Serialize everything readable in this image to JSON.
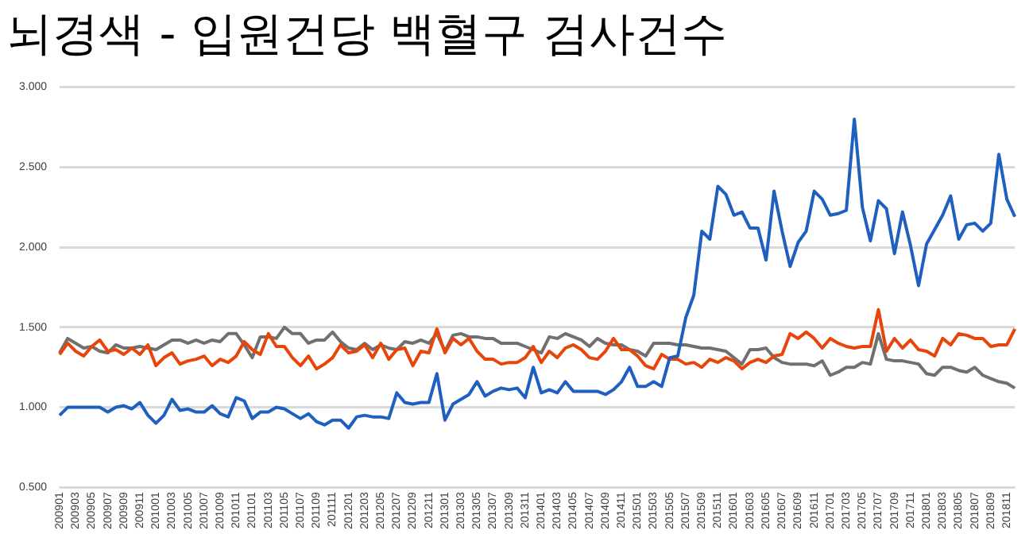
{
  "chart_data": {
    "type": "line",
    "title": "뇌경색 - 입원건당 백혈구 검사건수",
    "categories": [
      "200901",
      null,
      "200903",
      null,
      "200905",
      null,
      "200907",
      null,
      "200909",
      null,
      "200911",
      null,
      "201001",
      null,
      "201003",
      null,
      "201005",
      null,
      "201007",
      null,
      "201009",
      null,
      "201011",
      null,
      "201101",
      null,
      "201103",
      null,
      "201105",
      null,
      "201107",
      null,
      "201109",
      null,
      "201111",
      null,
      "201201",
      null,
      "201203",
      null,
      "201205",
      null,
      "201207",
      null,
      "201209",
      null,
      "201211",
      null,
      "201301",
      null,
      "201303",
      null,
      "201305",
      null,
      "201307",
      null,
      "201309",
      null,
      "201311",
      null,
      "201401",
      null,
      "201403",
      null,
      "201405",
      null,
      "201407",
      null,
      "201409",
      null,
      "201411",
      null,
      "201501",
      null,
      "201503",
      null,
      "201505",
      null,
      "201507",
      null,
      "201509",
      null,
      "201511",
      null,
      "201601",
      null,
      "201603",
      null,
      "201605",
      null,
      "201607",
      null,
      "201609",
      null,
      "201611",
      null,
      "201701",
      null,
      "201703",
      null,
      "201705",
      null,
      "201707",
      null,
      "201709",
      null,
      "201711",
      null,
      "201801",
      null,
      "201803",
      null,
      "201805",
      null,
      "201807",
      null,
      "201809",
      null,
      "201811",
      null
    ],
    "series": [
      {
        "color": "#1f5fbf",
        "values": [
          0.95,
          1.0,
          1.0,
          1.0,
          1.0,
          1.0,
          0.97,
          1.0,
          1.01,
          0.99,
          1.03,
          0.95,
          0.9,
          0.95,
          1.05,
          0.98,
          0.99,
          0.97,
          0.97,
          1.01,
          0.96,
          0.94,
          1.06,
          1.04,
          0.93,
          0.97,
          0.97,
          1.0,
          0.99,
          0.96,
          0.93,
          0.96,
          0.91,
          0.89,
          0.92,
          0.92,
          0.87,
          0.94,
          0.95,
          0.94,
          0.94,
          0.93,
          1.09,
          1.03,
          1.02,
          1.03,
          1.03,
          1.21,
          0.92,
          1.02,
          1.05,
          1.08,
          1.16,
          1.07,
          1.1,
          1.12,
          1.11,
          1.12,
          1.06,
          1.25,
          1.09,
          1.11,
          1.09,
          1.16,
          1.1,
          1.1,
          1.1,
          1.1,
          1.08,
          1.11,
          1.16,
          1.25,
          1.13,
          1.13,
          1.16,
          1.13,
          1.31,
          1.32,
          1.56,
          1.7,
          2.1,
          2.05,
          2.38,
          2.33,
          2.2,
          2.22,
          2.12,
          2.12,
          1.92,
          2.35,
          2.1,
          1.88,
          2.03,
          2.1,
          2.35,
          2.3,
          2.2,
          2.21,
          2.23,
          2.8,
          2.25,
          2.04,
          2.29,
          2.24,
          1.96,
          2.22,
          2.01,
          1.76,
          2.02,
          2.11,
          2.2,
          2.32,
          2.05,
          2.14,
          2.15,
          2.1,
          2.15,
          2.58,
          2.3,
          2.19
        ]
      },
      {
        "color": "#e8450a",
        "values": [
          1.33,
          1.4,
          1.35,
          1.32,
          1.38,
          1.42,
          1.35,
          1.36,
          1.33,
          1.37,
          1.33,
          1.39,
          1.26,
          1.31,
          1.34,
          1.27,
          1.29,
          1.3,
          1.32,
          1.26,
          1.3,
          1.28,
          1.32,
          1.41,
          1.36,
          1.33,
          1.46,
          1.38,
          1.38,
          1.31,
          1.26,
          1.32,
          1.24,
          1.27,
          1.31,
          1.39,
          1.34,
          1.35,
          1.39,
          1.31,
          1.4,
          1.3,
          1.36,
          1.37,
          1.26,
          1.35,
          1.34,
          1.49,
          1.34,
          1.43,
          1.39,
          1.43,
          1.35,
          1.3,
          1.3,
          1.27,
          1.28,
          1.28,
          1.31,
          1.38,
          1.28,
          1.35,
          1.31,
          1.37,
          1.39,
          1.36,
          1.31,
          1.3,
          1.35,
          1.43,
          1.36,
          1.36,
          1.32,
          1.26,
          1.24,
          1.33,
          1.3,
          1.3,
          1.27,
          1.28,
          1.25,
          1.3,
          1.28,
          1.31,
          1.29,
          1.24,
          1.28,
          1.3,
          1.28,
          1.32,
          1.33,
          1.46,
          1.43,
          1.47,
          1.43,
          1.37,
          1.43,
          1.4,
          1.38,
          1.37,
          1.38,
          1.38,
          1.61,
          1.35,
          1.43,
          1.37,
          1.42,
          1.36,
          1.35,
          1.32,
          1.43,
          1.39,
          1.46,
          1.45,
          1.43,
          1.43,
          1.38,
          1.39,
          1.39,
          1.49
        ]
      },
      {
        "color": "#707070",
        "values": [
          1.34,
          1.43,
          1.4,
          1.37,
          1.38,
          1.35,
          1.34,
          1.39,
          1.37,
          1.37,
          1.38,
          1.37,
          1.36,
          1.39,
          1.42,
          1.42,
          1.4,
          1.42,
          1.4,
          1.42,
          1.41,
          1.46,
          1.46,
          1.39,
          1.31,
          1.44,
          1.44,
          1.43,
          1.5,
          1.46,
          1.46,
          1.4,
          1.42,
          1.42,
          1.47,
          1.41,
          1.37,
          1.36,
          1.4,
          1.36,
          1.39,
          1.37,
          1.36,
          1.41,
          1.4,
          1.42,
          1.4,
          1.46,
          1.35,
          1.45,
          1.46,
          1.44,
          1.44,
          1.43,
          1.43,
          1.4,
          1.4,
          1.4,
          1.38,
          1.36,
          1.34,
          1.44,
          1.43,
          1.46,
          1.44,
          1.42,
          1.38,
          1.43,
          1.4,
          1.39,
          1.39,
          1.36,
          1.35,
          1.32,
          1.4,
          1.4,
          1.4,
          1.39,
          1.39,
          1.38,
          1.37,
          1.37,
          1.36,
          1.35,
          1.31,
          1.27,
          1.36,
          1.36,
          1.37,
          1.31,
          1.28,
          1.27,
          1.27,
          1.27,
          1.26,
          1.29,
          1.2,
          1.22,
          1.25,
          1.25,
          1.28,
          1.27,
          1.46,
          1.3,
          1.29,
          1.29,
          1.28,
          1.27,
          1.21,
          1.2,
          1.25,
          1.25,
          1.23,
          1.22,
          1.25,
          1.2,
          1.18,
          1.16,
          1.15,
          1.12
        ]
      }
    ],
    "ylim": [
      0.5,
      3
    ],
    "yticks": [
      {
        "value": 0.5,
        "label": "0.500"
      },
      {
        "value": 1,
        "label": "1.000"
      },
      {
        "value": 1.5,
        "label": "1.500"
      },
      {
        "value": 2,
        "label": "2.000"
      },
      {
        "value": 2.5,
        "label": "2.500"
      },
      {
        "value": 3,
        "label": "3.000"
      }
    ],
    "grid": "y",
    "legend": false,
    "marker": "none",
    "line_style": "solid"
  }
}
